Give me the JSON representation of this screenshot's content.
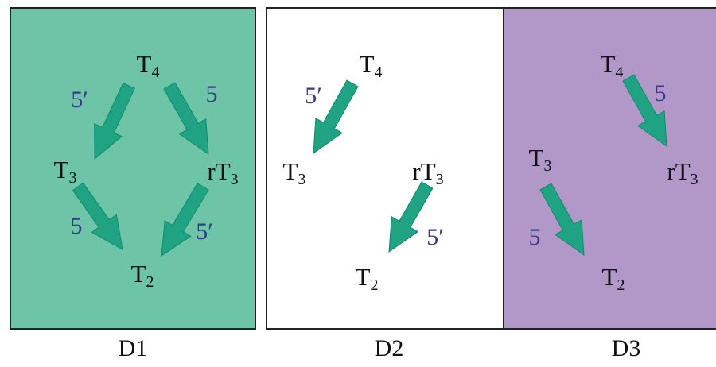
{
  "colors": {
    "d1_background": "#6ec4a7",
    "d2_background": "#ffffff",
    "d3_background": "#b198c8",
    "arrow": "#1fa383",
    "rate_label": "#3a3a8c"
  },
  "panels": [
    {
      "caption": "D1",
      "nodes": {
        "t4": {
          "base": "T",
          "sub": "4"
        },
        "t3": {
          "base": "T",
          "sub": "3"
        },
        "rt3": {
          "base": "rT",
          "sub": "3"
        },
        "t2": {
          "base": "T",
          "sub": "2"
        }
      },
      "arrows": [
        {
          "from": "T4",
          "to": "T3",
          "label": "5′"
        },
        {
          "from": "T4",
          "to": "rT3",
          "label": "5"
        },
        {
          "from": "T3",
          "to": "T2",
          "label": "5"
        },
        {
          "from": "rT3",
          "to": "T2",
          "label": "5′"
        }
      ]
    },
    {
      "caption": "D2",
      "nodes": {
        "t4": {
          "base": "T",
          "sub": "4"
        },
        "t3": {
          "base": "T",
          "sub": "3"
        },
        "rt3": {
          "base": "rT",
          "sub": "3"
        },
        "t2": {
          "base": "T",
          "sub": "2"
        }
      },
      "arrows": [
        {
          "from": "T4",
          "to": "T3",
          "label": "5′"
        },
        {
          "from": "rT3",
          "to": "T2",
          "label": "5′"
        }
      ]
    },
    {
      "caption": "D3",
      "nodes": {
        "t4": {
          "base": "T",
          "sub": "4"
        },
        "t3": {
          "base": "T",
          "sub": "3"
        },
        "rt3": {
          "base": "rT",
          "sub": "3"
        },
        "t2": {
          "base": "T",
          "sub": "2"
        }
      },
      "arrows": [
        {
          "from": "T4",
          "to": "rT3",
          "label": "5"
        },
        {
          "from": "T3",
          "to": "T2",
          "label": "5"
        }
      ]
    }
  ]
}
